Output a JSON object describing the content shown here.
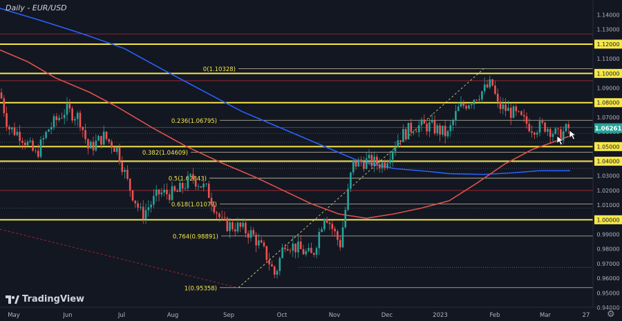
{
  "header": {
    "title": "Daily - EUR/USD"
  },
  "branding": {
    "logo_text": "TradingView"
  },
  "colors": {
    "background": "#131722",
    "yellow": "#f7e84a",
    "red_line": "#e0524a",
    "blue_line": "#2962ff",
    "candle_up": "#26a69a",
    "candle_down": "#ef5350",
    "price_badge": "#26a69a",
    "resistance_red": "#b22833"
  },
  "icons": {
    "settings": "gear-icon",
    "cursor": "cursor-arrow-icon"
  },
  "chart_data": {
    "type": "candlestick",
    "title": "Daily - EUR/USD",
    "ylim": [
      0.9445,
      1.1445
    ],
    "y_ticks": [
      "1.14000",
      "1.13000",
      "1.12000",
      "1.11000",
      "1.10000",
      "1.09000",
      "1.08000",
      "1.07000",
      "1.06000",
      "1.05000",
      "1.04000",
      "1.03000",
      "1.02000",
      "1.01000",
      "1.00000",
      "0.99000",
      "0.98000",
      "0.97000",
      "0.96000",
      "0.95000",
      "0.94000"
    ],
    "x_ticks": [
      "May",
      "Jun",
      "Jul",
      "Aug",
      "Sep",
      "Oct",
      "Nov",
      "Dec",
      "2023",
      "Feb",
      "Mar",
      "27"
    ],
    "current_price": {
      "label": "1.06261",
      "value": 1.06261
    },
    "horizontal_levels": [
      {
        "value": 1.12,
        "color": "yellow"
      },
      {
        "value": 1.1,
        "color": "yellow"
      },
      {
        "value": 1.08,
        "color": "yellow"
      },
      {
        "value": 1.05,
        "color": "yellow"
      },
      {
        "value": 1.04,
        "color": "yellow"
      },
      {
        "value": 1.0,
        "color": "yellow"
      }
    ],
    "fibonacci": [
      {
        "label": "0(1.10328)",
        "value": 1.10328
      },
      {
        "label": "0.236(1.06795)",
        "value": 1.06795
      },
      {
        "label": "0.382(1.04609)",
        "value": 1.04609
      },
      {
        "label": "0.5(1.02843)",
        "value": 1.02843
      },
      {
        "label": "0.618(1.01077)",
        "value": 1.01077
      },
      {
        "label": "0.764(0.98891)",
        "value": 0.98891
      },
      {
        "label": "1(0.95358)",
        "value": 0.95358
      }
    ]
  }
}
